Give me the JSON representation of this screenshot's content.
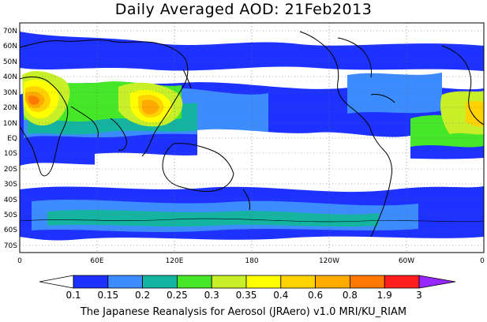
{
  "title": "Daily Averaged AOD: 21Feb2013",
  "credit": "The Japanese Reanalysis for Aerosol (JRAero) v1.0 MRI/KU_RIAM",
  "map": {
    "lat_labels": [
      "70N",
      "60N",
      "50N",
      "40N",
      "30N",
      "20N",
      "10N",
      "EQ",
      "10S",
      "20S",
      "30S",
      "40S",
      "50S",
      "60S",
      "70S"
    ],
    "lon_labels": [
      "0",
      "60E",
      "120E",
      "180",
      "120W",
      "60W",
      "0"
    ]
  },
  "colorbar": {
    "labels": [
      "0.1",
      "0.15",
      "0.2",
      "0.25",
      "0.3",
      "0.35",
      "0.4",
      "0.6",
      "0.8",
      "1.9",
      "3"
    ],
    "colors": [
      "#ffffff",
      "#1e32ff",
      "#3c8cff",
      "#14b4a0",
      "#46e628",
      "#c8f028",
      "#ffff00",
      "#ffd200",
      "#ffaa00",
      "#ff7800",
      "#ff1e1e",
      "#9628ff"
    ]
  },
  "colors": {
    "land": "#ffffff",
    "coast": "#000000",
    "grid": "#666666"
  }
}
